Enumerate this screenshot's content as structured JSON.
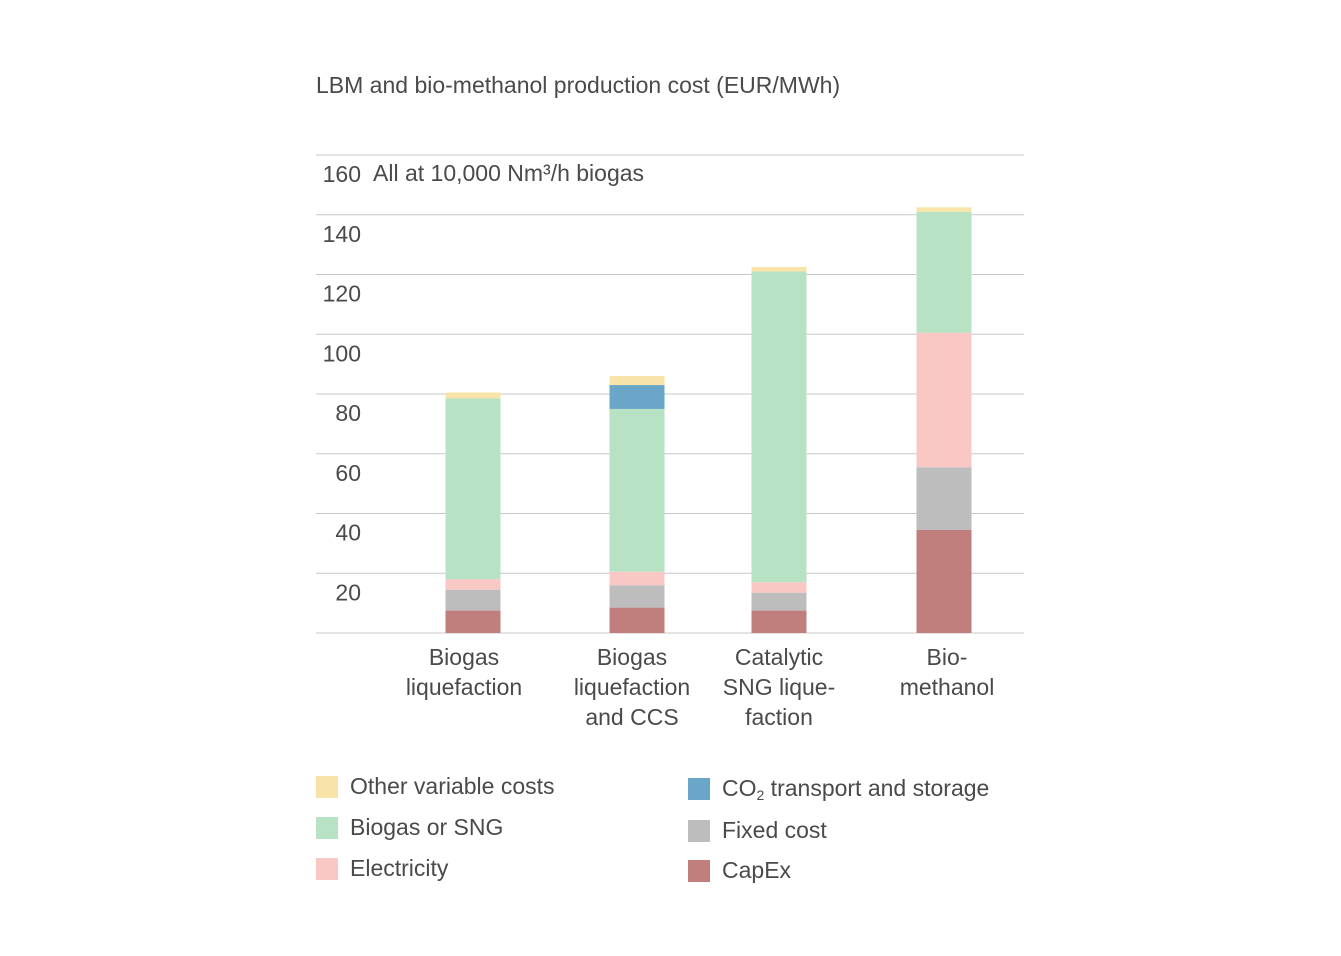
{
  "chart_data": {
    "type": "bar",
    "stacked": true,
    "title": "LBM and bio-methanol production cost (EUR/MWh)",
    "annotation": "All at 10,000 Nm³/h biogas",
    "categories": [
      [
        "Biogas",
        "liquefaction"
      ],
      [
        "Biogas",
        "liquefaction",
        "and CCS"
      ],
      [
        "Catalytic",
        "SNG lique-",
        "faction"
      ],
      [
        "Bio-",
        "methanol"
      ]
    ],
    "ylim": [
      0,
      160
    ],
    "yticks": [
      20,
      40,
      60,
      80,
      100,
      120,
      140,
      160
    ],
    "grid": true,
    "legend_position": "bottom",
    "series": [
      {
        "name": "CapEx",
        "color": "#c07e7c",
        "values": [
          7.5,
          8.5,
          7.5,
          34.5
        ]
      },
      {
        "name": "Fixed cost",
        "color": "#bdbdbd",
        "values": [
          7,
          7.5,
          6,
          21
        ]
      },
      {
        "name": "Electricity",
        "color": "#f9c8c4",
        "values": [
          3.5,
          4.5,
          3.5,
          45
        ]
      },
      {
        "name": "Biogas or SNG",
        "color": "#b8e2c4",
        "values": [
          60.5,
          54.5,
          104,
          40.5
        ]
      },
      {
        "name": "CO₂ transport and storage",
        "color": "#6aa6c8",
        "values": [
          0,
          8,
          0,
          0
        ]
      },
      {
        "name": "Other variable costs",
        "color": "#f8e4a8",
        "values": [
          2,
          3,
          1.5,
          1.5
        ]
      }
    ],
    "legend": [
      {
        "label": "Other variable costs",
        "color": "#f8e4a8"
      },
      {
        "label": "Biogas or SNG",
        "color": "#b8e2c4"
      },
      {
        "label": "Electricity",
        "color": "#f9c8c4"
      },
      {
        "label_main": "CO",
        "label_sub": "2",
        "label_rest": " transport and storage",
        "color": "#6aa6c8"
      },
      {
        "label": "Fixed cost",
        "color": "#bdbdbd"
      },
      {
        "label": "CapEx",
        "color": "#c07e7c"
      }
    ]
  }
}
